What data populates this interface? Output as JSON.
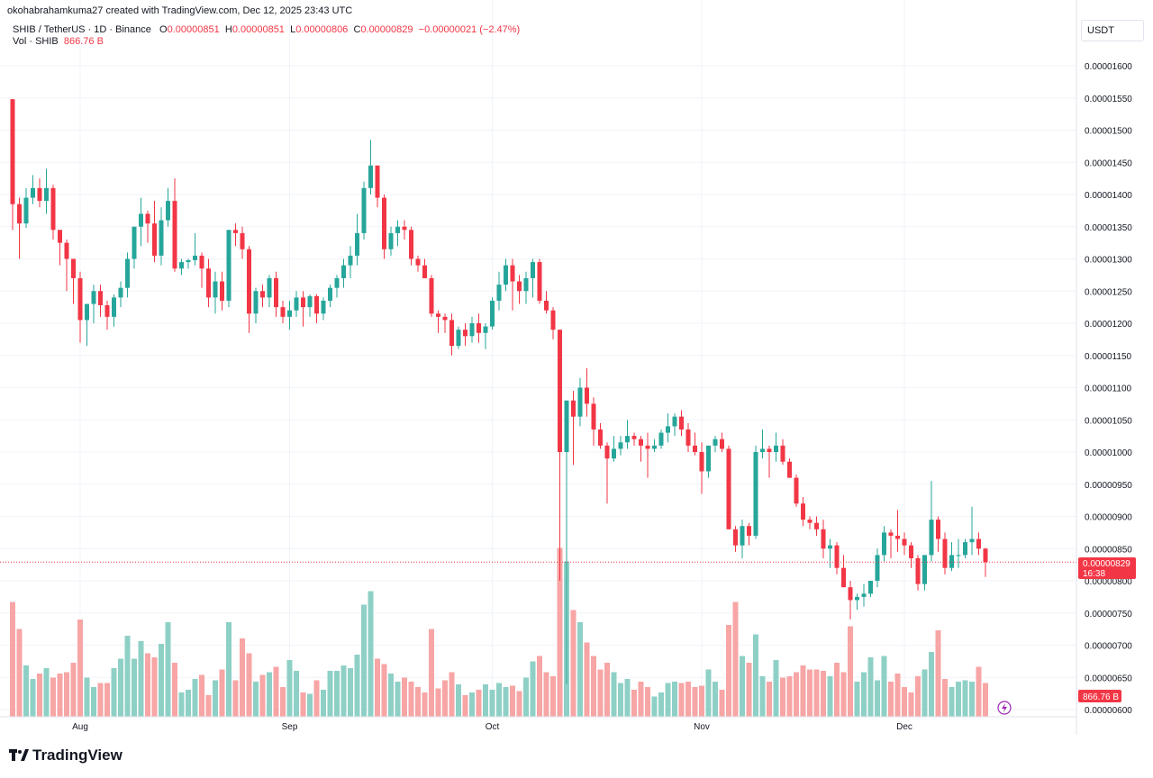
{
  "header": {
    "created_by": "okohabrahamkuma27 created with TradingView.com, Dec 12, 2025 23:43 UTC"
  },
  "legend": {
    "symbol": "SHIB / TetherUS · 1D · Binance",
    "o_label": "O",
    "o_value": "0.00000851",
    "h_label": "H",
    "h_value": "0.00000851",
    "l_label": "L",
    "l_value": "0.00000806",
    "c_label": "C",
    "c_value": "0.00000829",
    "change": "−0.00000021 (−2.47%)",
    "vol_label": "Vol · SHIB",
    "vol_value": "866.76 B"
  },
  "currency_button": "USDT",
  "brand": "TradingView",
  "colors": {
    "up": "#26a69a",
    "down": "#f23645",
    "up_vol": "#8fd0c6",
    "down_vol": "#f7a5a5",
    "grid": "#f0f3fa"
  },
  "chart_data": {
    "type": "candlestick",
    "ylim": [
      5.9e-06,
      1.63e-05
    ],
    "yticks": [
      "0.00001600",
      "0.00001550",
      "0.00001500",
      "0.00001450",
      "0.00001400",
      "0.00001350",
      "0.00001300",
      "0.00001250",
      "0.00001200",
      "0.00001150",
      "0.00001100",
      "0.00001050",
      "0.00001000",
      "0.00000950",
      "0.00000900",
      "0.00000850",
      "0.00000800",
      "0.00000750",
      "0.00000700",
      "0.00000650",
      "0.00000600"
    ],
    "xticks": [
      {
        "label": "Aug",
        "index": 10
      },
      {
        "label": "Sep",
        "index": 41
      },
      {
        "label": "Oct",
        "index": 71
      },
      {
        "label": "Nov",
        "index": 102
      },
      {
        "label": "Dec",
        "index": 132
      }
    ],
    "last_price_label": "0.00000829",
    "countdown_label": "16:38",
    "volume_label": "866.76 B",
    "candles": [
      [
        1548,
        1548,
        1345,
        1385,
        8.5
      ],
      [
        1385,
        1395,
        1300,
        1355,
        6.5
      ],
      [
        1355,
        1410,
        1348,
        1395,
        3.8
      ],
      [
        1395,
        1430,
        1385,
        1410,
        2.8
      ],
      [
        1410,
        1425,
        1380,
        1390,
        3.2
      ],
      [
        1390,
        1440,
        1370,
        1410,
        3.6
      ],
      [
        1410,
        1415,
        1330,
        1345,
        2.9
      ],
      [
        1345,
        1345,
        1290,
        1325,
        3.2
      ],
      [
        1325,
        1330,
        1250,
        1300,
        3.3
      ],
      [
        1300,
        1300,
        1230,
        1270,
        4.0
      ],
      [
        1270,
        1280,
        1170,
        1205,
        7.2
      ],
      [
        1205,
        1230,
        1165,
        1230,
        2.9
      ],
      [
        1230,
        1260,
        1200,
        1250,
        2.2
      ],
      [
        1250,
        1260,
        1210,
        1228,
        2.5
      ],
      [
        1228,
        1235,
        1190,
        1210,
        2.5
      ],
      [
        1210,
        1245,
        1195,
        1240,
        3.6
      ],
      [
        1240,
        1265,
        1225,
        1255,
        4.3
      ],
      [
        1255,
        1310,
        1240,
        1300,
        6.0
      ],
      [
        1300,
        1350,
        1285,
        1350,
        4.3
      ],
      [
        1350,
        1395,
        1320,
        1370,
        5.6
      ],
      [
        1370,
        1375,
        1325,
        1355,
        4.7
      ],
      [
        1355,
        1390,
        1295,
        1305,
        4.4
      ],
      [
        1305,
        1380,
        1290,
        1360,
        5.4
      ],
      [
        1360,
        1410,
        1350,
        1390,
        7.0
      ],
      [
        1390,
        1425,
        1280,
        1285,
        4.0
      ],
      [
        1285,
        1300,
        1275,
        1295,
        1.8
      ],
      [
        1295,
        1300,
        1285,
        1298,
        2.0
      ],
      [
        1298,
        1340,
        1290,
        1305,
        2.8
      ],
      [
        1305,
        1310,
        1255,
        1285,
        3.1
      ],
      [
        1285,
        1300,
        1225,
        1240,
        1.6
      ],
      [
        1240,
        1280,
        1215,
        1265,
        2.7
      ],
      [
        1265,
        1280,
        1220,
        1235,
        3.5
      ],
      [
        1235,
        1345,
        1225,
        1345,
        7.0
      ],
      [
        1345,
        1355,
        1320,
        1340,
        2.7
      ],
      [
        1340,
        1350,
        1300,
        1315,
        5.8
      ],
      [
        1315,
        1320,
        1185,
        1215,
        4.7
      ],
      [
        1215,
        1255,
        1200,
        1250,
        2.6
      ],
      [
        1250,
        1260,
        1225,
        1240,
        3.1
      ],
      [
        1240,
        1275,
        1225,
        1270,
        3.3
      ],
      [
        1270,
        1280,
        1210,
        1225,
        3.7
      ],
      [
        1225,
        1235,
        1200,
        1210,
        2.2
      ],
      [
        1210,
        1235,
        1190,
        1220,
        4.2
      ],
      [
        1220,
        1250,
        1210,
        1240,
        3.4
      ],
      [
        1240,
        1250,
        1195,
        1225,
        1.8
      ],
      [
        1225,
        1245,
        1210,
        1242,
        1.7
      ],
      [
        1242,
        1245,
        1200,
        1215,
        2.7
      ],
      [
        1215,
        1240,
        1205,
        1235,
        2.0
      ],
      [
        1235,
        1260,
        1225,
        1255,
        3.4
      ],
      [
        1255,
        1275,
        1240,
        1270,
        3.4
      ],
      [
        1270,
        1300,
        1255,
        1290,
        3.8
      ],
      [
        1290,
        1320,
        1270,
        1305,
        3.6
      ],
      [
        1305,
        1370,
        1290,
        1340,
        4.6
      ],
      [
        1340,
        1420,
        1330,
        1410,
        8.3
      ],
      [
        1410,
        1485,
        1400,
        1445,
        9.3
      ],
      [
        1445,
        1445,
        1380,
        1395,
        4.3
      ],
      [
        1395,
        1400,
        1300,
        1315,
        3.9
      ],
      [
        1315,
        1350,
        1305,
        1340,
        3.2
      ],
      [
        1340,
        1360,
        1320,
        1350,
        2.6
      ],
      [
        1350,
        1360,
        1330,
        1345,
        2.9
      ],
      [
        1345,
        1350,
        1290,
        1300,
        2.6
      ],
      [
        1300,
        1305,
        1280,
        1290,
        2.2
      ],
      [
        1290,
        1300,
        1270,
        1270,
        1.8
      ],
      [
        1270,
        1275,
        1210,
        1215,
        6.5
      ],
      [
        1215,
        1220,
        1185,
        1210,
        2.1
      ],
      [
        1210,
        1215,
        1185,
        1205,
        2.7
      ],
      [
        1205,
        1215,
        1150,
        1165,
        3.3
      ],
      [
        1165,
        1195,
        1160,
        1190,
        2.4
      ],
      [
        1190,
        1200,
        1165,
        1180,
        1.6
      ],
      [
        1180,
        1210,
        1170,
        1200,
        1.8
      ],
      [
        1200,
        1215,
        1170,
        1185,
        2.0
      ],
      [
        1185,
        1200,
        1160,
        1195,
        2.4
      ],
      [
        1195,
        1240,
        1190,
        1235,
        2.0
      ],
      [
        1235,
        1280,
        1220,
        1260,
        2.5
      ],
      [
        1260,
        1300,
        1250,
        1290,
        2.2
      ],
      [
        1290,
        1300,
        1220,
        1265,
        2.3
      ],
      [
        1265,
        1275,
        1230,
        1250,
        1.9
      ],
      [
        1250,
        1280,
        1230,
        1270,
        2.9
      ],
      [
        1270,
        1300,
        1240,
        1295,
        4.1
      ],
      [
        1295,
        1300,
        1230,
        1235,
        4.5
      ],
      [
        1235,
        1250,
        1215,
        1220,
        3.3
      ],
      [
        1220,
        1225,
        1175,
        1190,
        3.0
      ],
      [
        1190,
        1190,
        800,
        1000,
        12.5
      ],
      [
        1000,
        1080,
        640,
        1080,
        11.5
      ],
      [
        1080,
        1095,
        980,
        1055,
        7.9
      ],
      [
        1055,
        1115,
        1040,
        1100,
        7.0
      ],
      [
        1100,
        1130,
        1055,
        1075,
        5.5
      ],
      [
        1075,
        1085,
        1010,
        1035,
        4.5
      ],
      [
        1035,
        1045,
        1005,
        1010,
        3.5
      ],
      [
        1010,
        1015,
        920,
        990,
        4.0
      ],
      [
        990,
        1025,
        985,
        1005,
        3.3
      ],
      [
        1005,
        1025,
        995,
        1015,
        2.5
      ],
      [
        1015,
        1050,
        1005,
        1025,
        2.8
      ],
      [
        1025,
        1030,
        1010,
        1020,
        2.0
      ],
      [
        1020,
        1025,
        985,
        1010,
        2.6
      ],
      [
        1010,
        1030,
        960,
        1005,
        2.2
      ],
      [
        1005,
        1020,
        1000,
        1010,
        1.5
      ],
      [
        1010,
        1035,
        1005,
        1030,
        1.8
      ],
      [
        1030,
        1060,
        1015,
        1040,
        2.5
      ],
      [
        1040,
        1060,
        1025,
        1055,
        2.6
      ],
      [
        1055,
        1065,
        1025,
        1035,
        2.5
      ],
      [
        1035,
        1045,
        1000,
        1010,
        2.6
      ],
      [
        1010,
        1030,
        995,
        1000,
        2.2
      ],
      [
        1000,
        1015,
        935,
        970,
        2.3
      ],
      [
        970,
        1010,
        960,
        1010,
        3.5
      ],
      [
        1010,
        1025,
        1000,
        1020,
        2.6
      ],
      [
        1020,
        1030,
        1000,
        1005,
        2.0
      ],
      [
        1005,
        1010,
        880,
        880,
        6.8
      ],
      [
        880,
        885,
        845,
        855,
        8.5
      ],
      [
        855,
        895,
        835,
        885,
        4.5
      ],
      [
        885,
        890,
        855,
        870,
        4.0
      ],
      [
        870,
        1010,
        865,
        1000,
        6.1
      ],
      [
        1000,
        1035,
        990,
        1005,
        3.0
      ],
      [
        1005,
        1010,
        960,
        1000,
        2.6
      ],
      [
        1000,
        1030,
        985,
        1010,
        4.2
      ],
      [
        1010,
        1020,
        980,
        985,
        2.9
      ],
      [
        985,
        990,
        960,
        960,
        3.0
      ],
      [
        960,
        965,
        915,
        920,
        3.3
      ],
      [
        920,
        930,
        885,
        895,
        3.8
      ],
      [
        895,
        900,
        880,
        890,
        3.5
      ],
      [
        890,
        900,
        870,
        880,
        3.5
      ],
      [
        880,
        895,
        835,
        850,
        3.4
      ],
      [
        850,
        865,
        820,
        855,
        3.0
      ],
      [
        855,
        860,
        810,
        820,
        4.0
      ],
      [
        820,
        840,
        790,
        790,
        3.3
      ],
      [
        790,
        800,
        740,
        770,
        6.7
      ],
      [
        770,
        780,
        755,
        775,
        2.6
      ],
      [
        775,
        795,
        760,
        780,
        3.3
      ],
      [
        780,
        800,
        775,
        800,
        4.4
      ],
      [
        800,
        850,
        790,
        840,
        2.7
      ],
      [
        840,
        885,
        830,
        875,
        4.5
      ],
      [
        875,
        880,
        835,
        870,
        2.6
      ],
      [
        870,
        910,
        845,
        865,
        3.2
      ],
      [
        865,
        875,
        840,
        855,
        2.2
      ],
      [
        855,
        860,
        820,
        835,
        1.8
      ],
      [
        835,
        840,
        785,
        795,
        3.0
      ],
      [
        795,
        840,
        785,
        840,
        3.5
      ],
      [
        840,
        955,
        830,
        895,
        4.8
      ],
      [
        895,
        900,
        845,
        865,
        6.4
      ],
      [
        865,
        875,
        810,
        820,
        2.8
      ],
      [
        820,
        860,
        815,
        840,
        2.2
      ],
      [
        840,
        865,
        820,
        840,
        2.6
      ],
      [
        840,
        865,
        835,
        860,
        2.7
      ],
      [
        860,
        915,
        840,
        865,
        2.6
      ],
      [
        865,
        875,
        840,
        850,
        3.7
      ],
      [
        850,
        851,
        806,
        829,
        2.5
      ]
    ],
    "price_scale_note": "OHLC values listed in units of 1e-8 USDT; volume in relative units"
  }
}
